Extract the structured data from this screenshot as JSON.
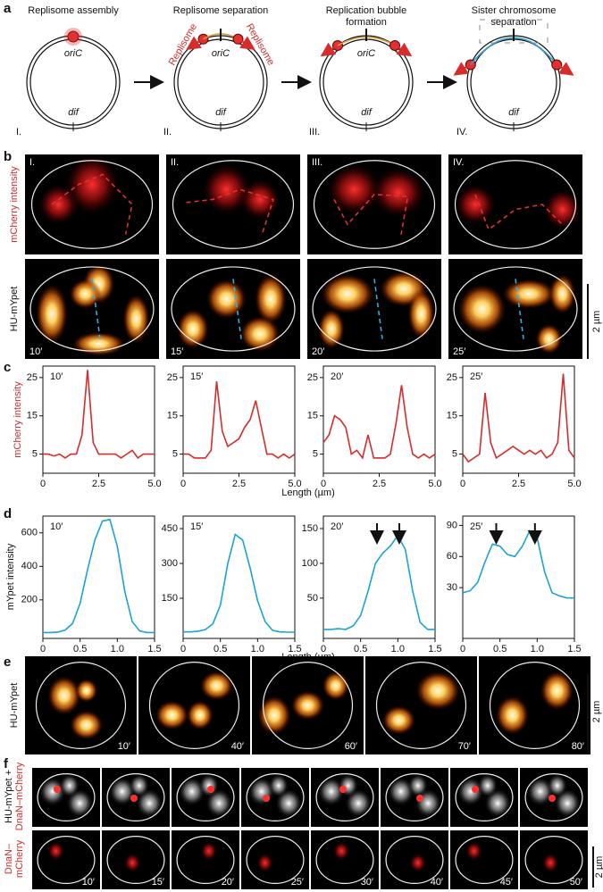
{
  "panel_a": {
    "label": "a",
    "titles": [
      [
        "Replisome assembly"
      ],
      [
        "Replisome separation"
      ],
      [
        "Replication bubble",
        "formation"
      ],
      [
        "Sister chromosome",
        "separation"
      ]
    ],
    "numerals": [
      "I.",
      "II.",
      "III.",
      "IV."
    ],
    "oriC": "oriC",
    "dif": "dif",
    "replisome": "Replisome"
  },
  "panel_b": {
    "label": "b",
    "numerals": [
      "I.",
      "II.",
      "III.",
      "IV."
    ],
    "row_labels": [
      "mCherry  intensity",
      "HU-mYpet"
    ],
    "times": [
      "10′",
      "15′",
      "20′",
      "25′"
    ],
    "scale_bar": "2 µm"
  },
  "panel_c": {
    "label": "c",
    "y_label": "mCherry  intensity",
    "x_label": "Length (µm)"
  },
  "panel_d": {
    "label": "d",
    "y_label": "mYpet  intensity",
    "x_label": "Length (µm)"
  },
  "chart_data": [
    {
      "type": "line",
      "panel": "c",
      "title": "10′",
      "color": "#d62c2c",
      "x": [
        0,
        0.25,
        0.5,
        0.75,
        1,
        1.25,
        1.5,
        1.75,
        2,
        2.25,
        2.5,
        2.75,
        3,
        3.25,
        3.5,
        3.75,
        4,
        4.25,
        4.5,
        4.75,
        5
      ],
      "values": [
        5,
        5,
        4.5,
        5,
        4,
        5,
        5,
        10,
        27,
        8,
        5,
        5,
        5,
        5,
        4,
        5,
        6,
        4,
        5,
        5,
        5
      ],
      "xlim": [
        0,
        5
      ],
      "ylim": [
        0,
        28
      ],
      "xticks": [
        0,
        2.5,
        {
          "value": 5,
          "label": "5.0"
        }
      ],
      "yticks": [
        5,
        15,
        25
      ]
    },
    {
      "type": "line",
      "panel": "c",
      "title": "15′",
      "color": "#d62c2c",
      "x": [
        0,
        0.25,
        0.5,
        0.75,
        1,
        1.25,
        1.5,
        1.75,
        2,
        2.25,
        2.5,
        2.75,
        3,
        3.25,
        3.5,
        3.75,
        4,
        4.25,
        4.5,
        4.75,
        5
      ],
      "values": [
        5,
        5,
        4,
        4,
        4,
        6,
        24,
        11,
        7,
        8,
        9,
        12,
        14,
        19,
        12,
        5,
        5,
        4,
        5,
        4,
        5
      ],
      "xlim": [
        0,
        5
      ],
      "ylim": [
        0,
        28
      ],
      "xticks": [
        0,
        2.5,
        {
          "value": 5,
          "label": "5.0"
        }
      ],
      "yticks": [
        5,
        15,
        25
      ]
    },
    {
      "type": "line",
      "panel": "c",
      "title": "20′",
      "color": "#d62c2c",
      "x": [
        0,
        0.25,
        0.5,
        0.75,
        1,
        1.25,
        1.5,
        1.75,
        2,
        2.25,
        2.5,
        2.75,
        3,
        3.25,
        3.5,
        3.75,
        4,
        4.25,
        4.5,
        4.75,
        5
      ],
      "values": [
        8,
        10,
        15,
        14,
        12,
        5,
        6,
        4,
        10,
        4,
        4,
        4,
        5,
        13,
        23,
        12,
        5,
        4,
        5,
        4,
        5
      ],
      "xlim": [
        0,
        5
      ],
      "ylim": [
        0,
        28
      ],
      "xticks": [
        0,
        2.5,
        {
          "value": 5,
          "label": "5.0"
        }
      ],
      "yticks": [
        5,
        15,
        25
      ]
    },
    {
      "type": "line",
      "panel": "c",
      "title": "25′",
      "color": "#d62c2c",
      "x": [
        0,
        0.25,
        0.5,
        0.75,
        1,
        1.25,
        1.5,
        1.75,
        2,
        2.25,
        2.5,
        2.75,
        3,
        3.25,
        3.5,
        3.75,
        4,
        4.25,
        4.5,
        4.75,
        5
      ],
      "values": [
        5,
        3,
        4,
        5,
        21,
        8,
        4,
        5,
        6,
        7,
        6,
        5,
        6,
        5,
        6,
        4,
        5,
        8,
        26,
        6,
        4
      ],
      "xlim": [
        0,
        5
      ],
      "ylim": [
        0,
        28
      ],
      "xticks": [
        0,
        2.5,
        {
          "value": 5,
          "label": "5.0"
        }
      ],
      "yticks": [
        5,
        15,
        25
      ]
    },
    {
      "type": "line",
      "panel": "d",
      "title": "10′",
      "color": "#1ba3d6",
      "x": [
        0,
        0.1,
        0.2,
        0.3,
        0.4,
        0.5,
        0.6,
        0.7,
        0.8,
        0.9,
        1,
        1.1,
        1.2,
        1.3,
        1.4,
        1.5
      ],
      "values": [
        5,
        5,
        8,
        20,
        60,
        180,
        380,
        560,
        670,
        680,
        520,
        250,
        70,
        15,
        5,
        5
      ],
      "xlim": [
        0,
        1.5
      ],
      "ylim": [
        -30,
        700
      ],
      "xticks": [
        0,
        0.5,
        {
          "value": 1,
          "label": "1.0"
        },
        1.5
      ],
      "yticks": [
        200,
        400,
        600
      ]
    },
    {
      "type": "line",
      "panel": "d",
      "title": "15′",
      "color": "#1ba3d6",
      "x": [
        0,
        0.1,
        0.2,
        0.3,
        0.4,
        0.5,
        0.6,
        0.7,
        0.8,
        0.9,
        1,
        1.1,
        1.2,
        1.3,
        1.4,
        1.5
      ],
      "values": [
        5,
        5,
        8,
        15,
        40,
        120,
        300,
        425,
        400,
        280,
        140,
        50,
        12,
        5,
        4,
        4
      ],
      "xlim": [
        0,
        1.5
      ],
      "ylim": [
        -23,
        504
      ],
      "xticks": [
        0,
        0.5,
        {
          "value": 1,
          "label": "1.0"
        },
        1.5
      ],
      "yticks": [
        150,
        300,
        450
      ]
    },
    {
      "type": "line",
      "panel": "d",
      "title": "20′",
      "color": "#1ba3d6",
      "x": [
        0,
        0.1,
        0.2,
        0.3,
        0.4,
        0.5,
        0.6,
        0.7,
        0.8,
        0.9,
        1,
        1.1,
        1.2,
        1.3,
        1.4,
        1.5
      ],
      "values": [
        5,
        5,
        6,
        5,
        10,
        25,
        60,
        100,
        115,
        125,
        140,
        120,
        60,
        15,
        5,
        5
      ],
      "xlim": [
        0,
        1.5
      ],
      "ylim": [
        -8,
        168
      ],
      "xticks": [
        0,
        0.5,
        {
          "value": 1,
          "label": "1.0"
        },
        1.5
      ],
      "yticks": [
        50,
        100,
        150
      ]
    },
    {
      "type": "line",
      "panel": "d",
      "title": "25′",
      "color": "#1ba3d6",
      "x": [
        0,
        0.1,
        0.2,
        0.3,
        0.4,
        0.5,
        0.6,
        0.7,
        0.8,
        0.9,
        1,
        1.1,
        1.2,
        1.3,
        1.4,
        1.5
      ],
      "values": [
        25,
        27,
        35,
        55,
        72,
        70,
        62,
        60,
        70,
        85,
        78,
        45,
        25,
        22,
        20,
        20
      ],
      "xlim": [
        0,
        1.5
      ],
      "ylim": [
        -19,
        99
      ],
      "xticks": [
        0,
        0.5,
        {
          "value": 1,
          "label": "1.0"
        },
        1.5
      ],
      "yticks": [
        30,
        60,
        90
      ]
    }
  ],
  "panel_e": {
    "label": "e",
    "row_label": "HU-mYpet",
    "times": [
      "10′",
      "40′",
      "60′",
      "70′",
      "80′"
    ],
    "scale_bar": "2 µm"
  },
  "panel_f": {
    "label": "f",
    "row_labels": [
      [
        "HU-mYpet +",
        "DnaN–mCherry"
      ],
      [
        "DnaN–",
        "mCherry"
      ]
    ],
    "times": [
      "10′",
      "15′",
      "20′",
      "25′",
      "30′",
      "40′",
      "45′",
      "50′"
    ],
    "scale_bar": "2 µm"
  }
}
